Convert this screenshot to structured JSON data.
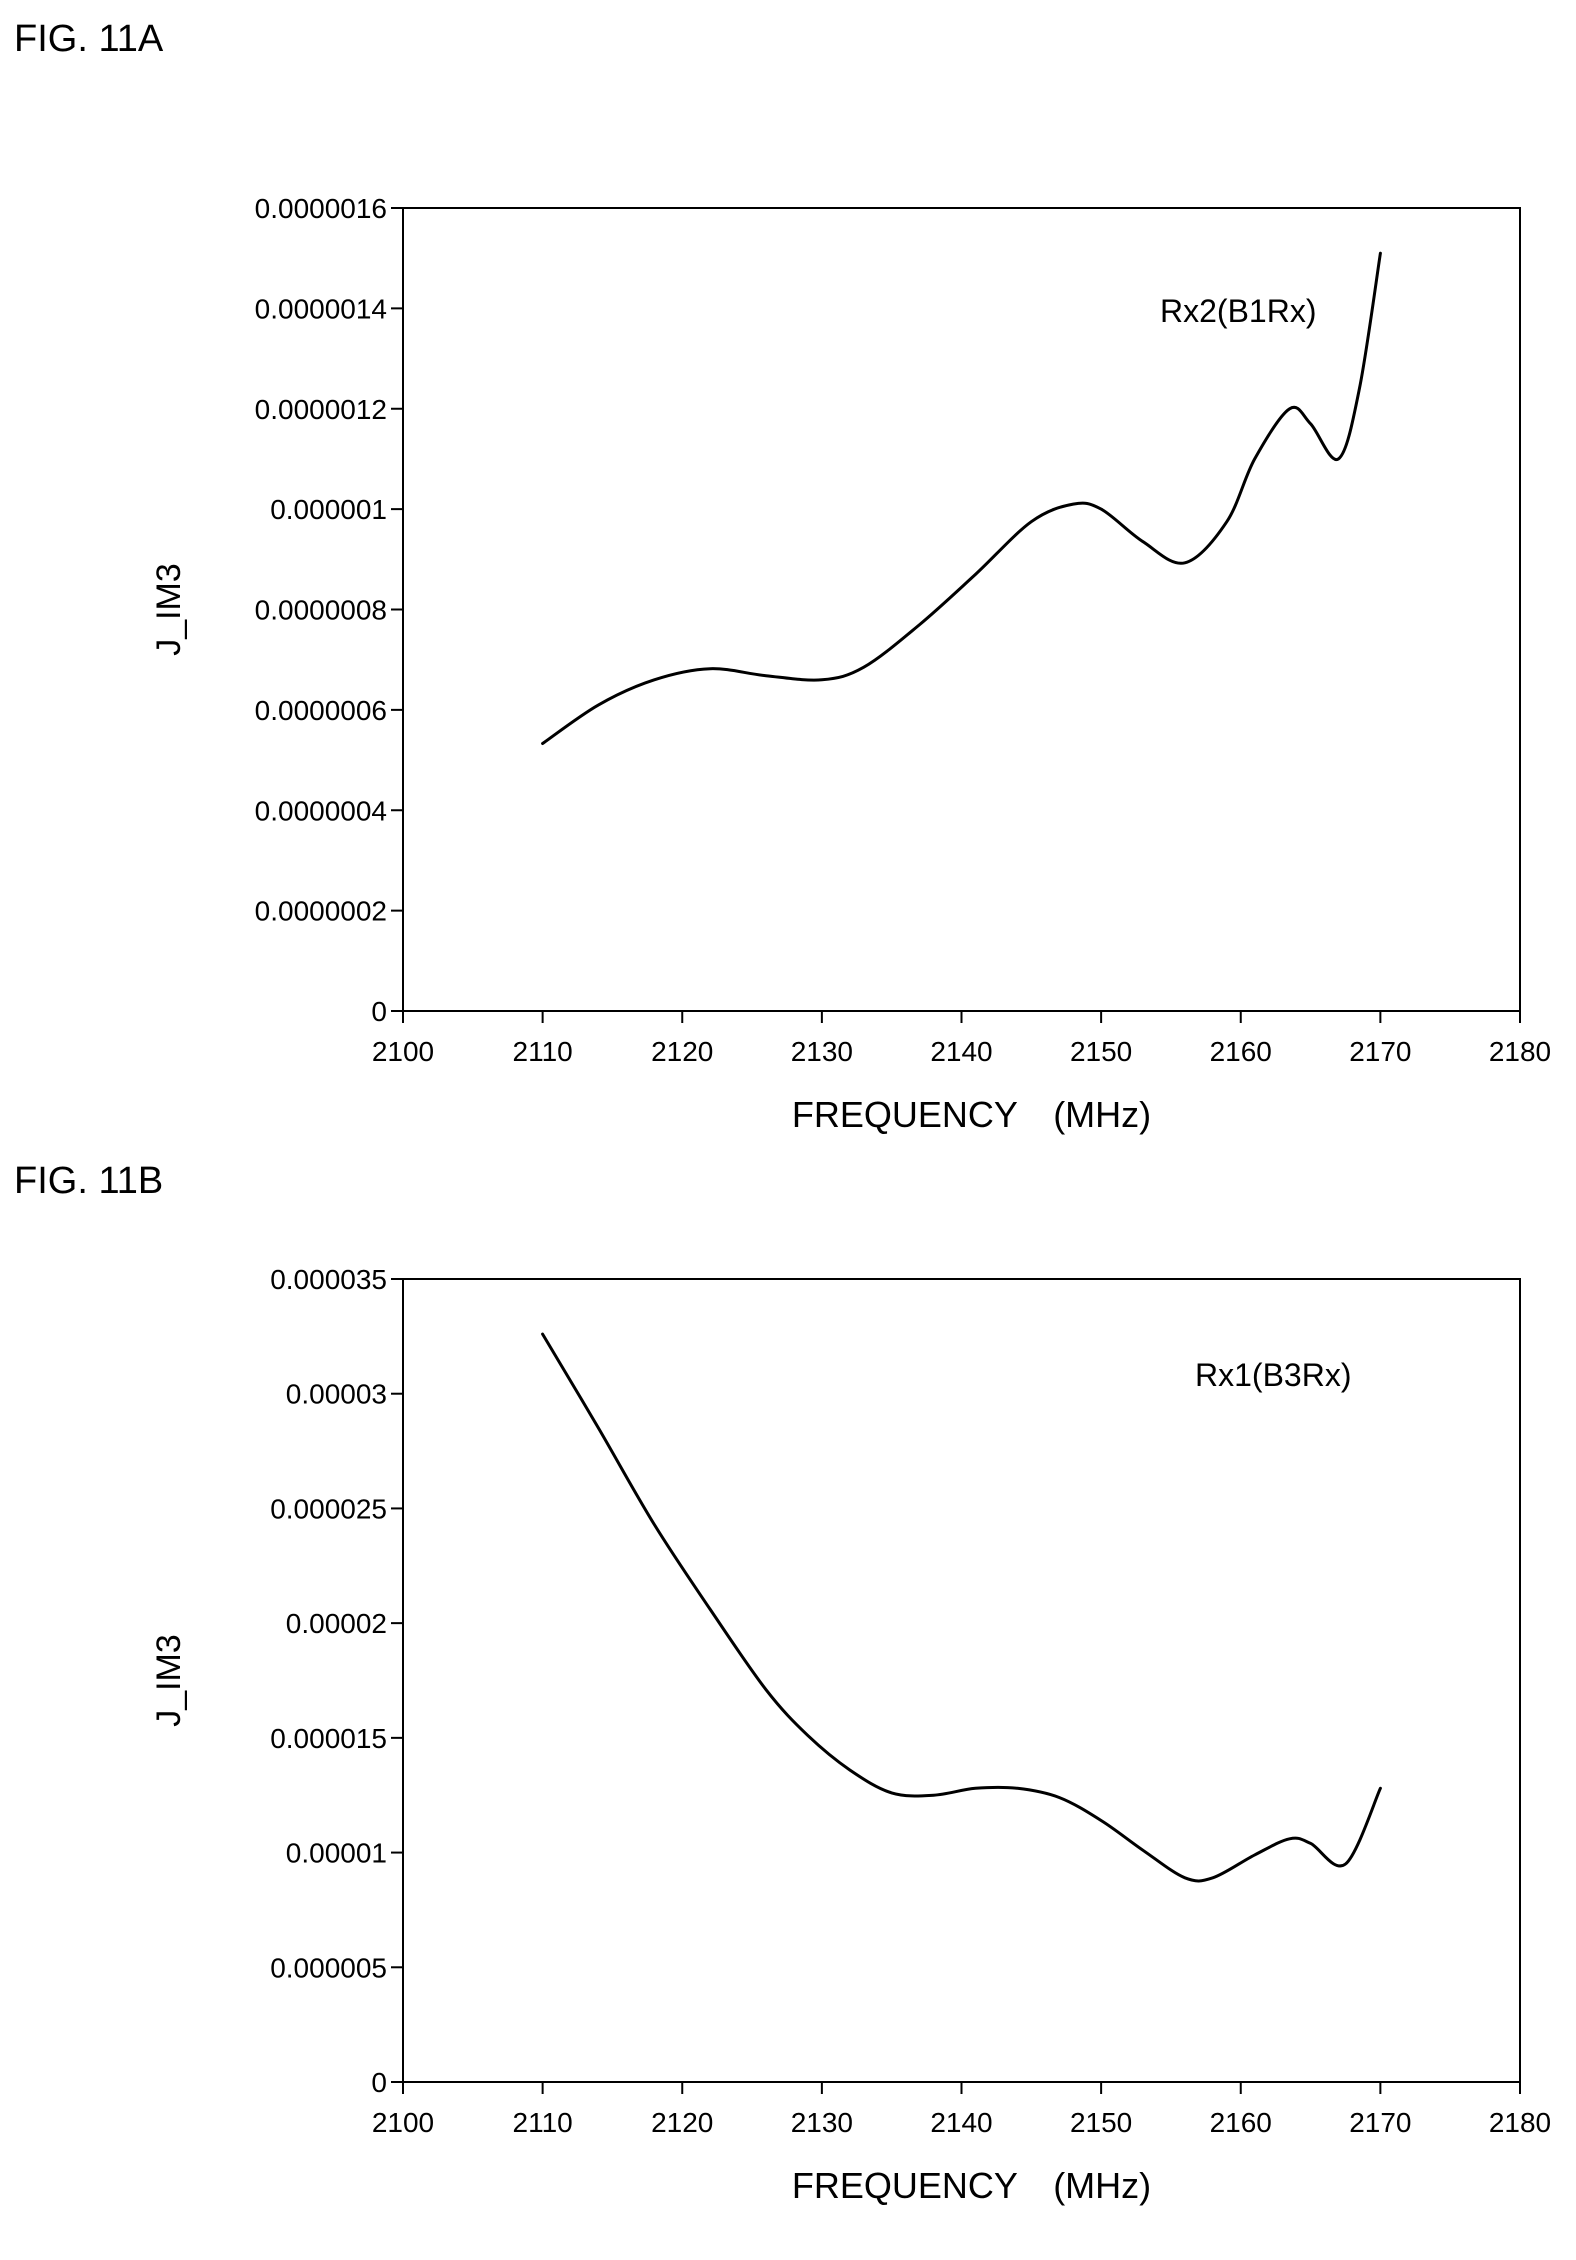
{
  "figures": [
    {
      "label": "FIG. 11A"
    },
    {
      "label": "FIG. 11B"
    }
  ],
  "chart_data": [
    {
      "type": "line",
      "title": "",
      "xlabel": "FREQUENCY　(MHz)",
      "ylabel": "J_IM3",
      "xlim": [
        2100,
        2180
      ],
      "ylim": [
        0,
        1.6e-06
      ],
      "xticks": [
        "2100",
        "2110",
        "2120",
        "2130",
        "2140",
        "2150",
        "2160",
        "2170",
        "2180"
      ],
      "yticks": [
        "0",
        "0.0000002",
        "0.0000004",
        "0.0000006",
        "0.0000008",
        "0.000001",
        "0.0000012",
        "0.0000014",
        "0.0000016"
      ],
      "grid": false,
      "annotations": [
        {
          "text": "Rx2(B1Rx)"
        }
      ],
      "series": [
        {
          "color": "#000000",
          "x": [
            2110,
            2114,
            2118,
            2122,
            2126,
            2130,
            2133,
            2137,
            2141,
            2145,
            2148,
            2150,
            2153,
            2156,
            2159,
            2161,
            2163.5,
            2165,
            2167,
            2168.5,
            2170
          ],
          "y": [
            5.33e-07,
            6.1e-07,
            6.6e-07,
            6.82e-07,
            6.68e-07,
            6.6e-07,
            6.85e-07,
            7.7e-07,
            8.7e-07,
            9.75e-07,
            1.01e-06,
            1e-06,
            9.35e-07,
            8.93e-07,
            9.75e-07,
            1.1e-06,
            1.2e-06,
            1.17e-06,
            1.1e-06,
            1.24e-06,
            1.51e-06
          ]
        }
      ]
    },
    {
      "type": "line",
      "title": "",
      "xlabel": "FREQUENCY　(MHz)",
      "ylabel": "J_IM3",
      "xlim": [
        2100,
        2180
      ],
      "ylim": [
        0,
        3.5e-05
      ],
      "xticks": [
        "2100",
        "2110",
        "2120",
        "2130",
        "2140",
        "2150",
        "2160",
        "2170",
        "2180"
      ],
      "yticks": [
        "0",
        "0.000005",
        "0.00001",
        "0.000015",
        "0.00002",
        "0.000025",
        "0.00003",
        "0.000035"
      ],
      "grid": false,
      "annotations": [
        {
          "text": "Rx1(B3Rx)"
        }
      ],
      "series": [
        {
          "color": "#000000",
          "x": [
            2110,
            2114,
            2118,
            2122,
            2126,
            2129,
            2132,
            2135,
            2138,
            2141,
            2144,
            2147,
            2150,
            2153,
            2156,
            2158,
            2161,
            2163.5,
            2165,
            2167.5,
            2170
          ],
          "y": [
            3.26e-05,
            2.85e-05,
            2.43e-05,
            2.06e-05,
            1.71e-05,
            1.51e-05,
            1.36e-05,
            1.26e-05,
            1.25e-05,
            1.28e-05,
            1.28e-05,
            1.24e-05,
            1.14e-05,
            1.01e-05,
            8.9e-06,
            8.9e-06,
            9.9e-06,
            1.06e-05,
            1.04e-05,
            9.5e-06,
            1.28e-05
          ]
        }
      ]
    }
  ]
}
